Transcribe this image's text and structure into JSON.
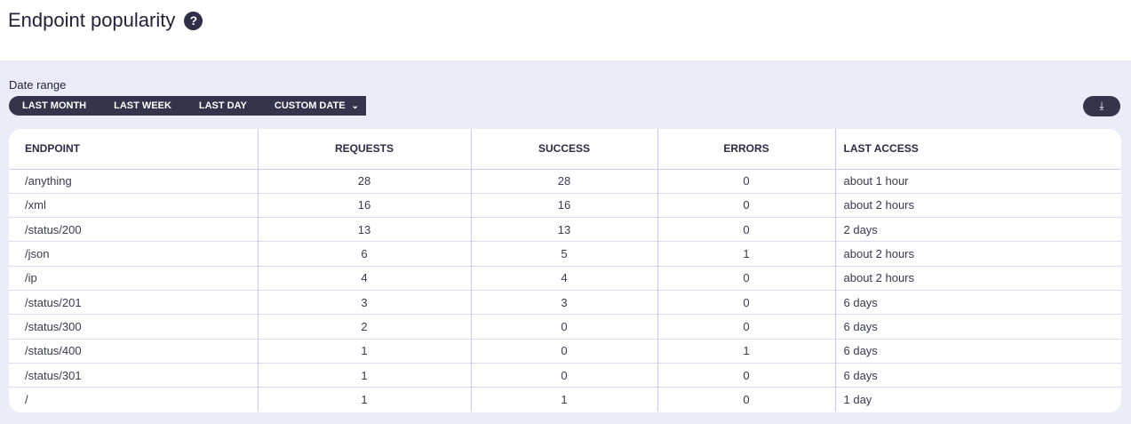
{
  "header": {
    "title": "Endpoint popularity",
    "help_icon": "question-circle-icon"
  },
  "date_range": {
    "label": "Date range",
    "options": [
      "LAST MONTH",
      "LAST WEEK",
      "LAST DAY",
      "CUSTOM DATE"
    ]
  },
  "download_icon": "download-icon",
  "table": {
    "columns": [
      "ENDPOINT",
      "REQUESTS",
      "SUCCESS",
      "ERRORS",
      "LAST ACCESS"
    ],
    "rows": [
      [
        "/anything",
        "28",
        "28",
        "0",
        "about 1 hour"
      ],
      [
        "/xml",
        "16",
        "16",
        "0",
        "about 2 hours"
      ],
      [
        "/status/200",
        "13",
        "13",
        "0",
        "2 days"
      ],
      [
        "/json",
        "6",
        "5",
        "1",
        "about 2 hours"
      ],
      [
        "/ip",
        "4",
        "4",
        "0",
        "about 2 hours"
      ],
      [
        "/status/201",
        "3",
        "3",
        "0",
        "6 days"
      ],
      [
        "/status/300",
        "2",
        "0",
        "0",
        "6 days"
      ],
      [
        "/status/400",
        "1",
        "0",
        "1",
        "6 days"
      ],
      [
        "/status/301",
        "1",
        "0",
        "0",
        "6 days"
      ],
      [
        "/",
        "1",
        "1",
        "0",
        "1 day"
      ]
    ]
  }
}
